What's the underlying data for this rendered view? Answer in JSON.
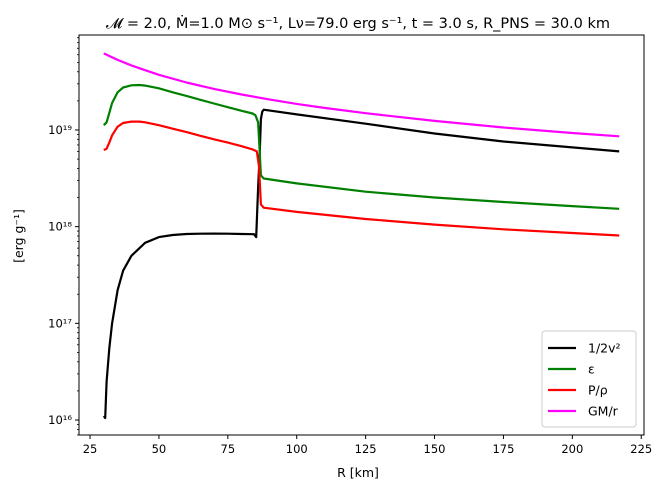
{
  "chart_data": {
    "type": "line",
    "title": "𝓜 = 2.0, Ṁ=1.0 M⊙ s⁻¹, Lν=79.0 erg s⁻¹, t = 3.0 s, R_PNS = 30.0 km",
    "xlabel": "R [km]",
    "ylabel": "[erg g⁻¹]",
    "xscale": "linear",
    "yscale": "log",
    "xlim": [
      21,
      226
    ],
    "ylim": [
      7000000000000000.0,
      9.6e+19
    ],
    "xticks": [
      25,
      50,
      75,
      100,
      125,
      150,
      175,
      200,
      225
    ],
    "yticks": [
      {
        "value": 1e+16,
        "label": "10¹⁶"
      },
      {
        "value": 1e+17,
        "label": "10¹⁷"
      },
      {
        "value": 1e+18,
        "label": "10¹⁸"
      },
      {
        "value": 1e+19,
        "label": "10¹⁹"
      }
    ],
    "grid": false,
    "legend_position": "lower-right",
    "series": [
      {
        "name": "1/2v²",
        "color": "#000000",
        "x": [
          30,
          30.5,
          31,
          32,
          33,
          35,
          37,
          40,
          45,
          50,
          55,
          60,
          65,
          70,
          75,
          80,
          84.5,
          85.3,
          86,
          86.6,
          87,
          87.5,
          88,
          100,
          125,
          150,
          175,
          200,
          217
        ],
        "y": [
          1.1e+16,
          1.05e+16,
          2.5e+16,
          5.5e+16,
          1e+17,
          2.2e+17,
          3.5e+17,
          5e+17,
          6.8e+17,
          7.8e+17,
          8.2e+17,
          8.4e+17,
          8.45e+17,
          8.47e+17,
          8.45e+17,
          8.4e+17,
          8.35e+17,
          7.8e+17,
          2.5e+18,
          6e+18,
          1.3e+19,
          1.55e+19,
          1.62e+19,
          1.45e+19,
          1.16e+19,
          9.2e+18,
          7.6e+18,
          6.6e+18,
          6e+18
        ]
      },
      {
        "name": "ε",
        "color": "#008000",
        "x": [
          30,
          31,
          32,
          33,
          35,
          37,
          40,
          43,
          45,
          50,
          55,
          60,
          65,
          70,
          75,
          80,
          84,
          85,
          86,
          86.5,
          87,
          88,
          100,
          125,
          150,
          175,
          200,
          217
        ],
        "y": [
          1.12e+19,
          1.2e+19,
          1.5e+19,
          1.9e+19,
          2.45e+19,
          2.75e+19,
          2.9e+19,
          2.92e+19,
          2.88e+19,
          2.7e+19,
          2.45e+19,
          2.25e+19,
          2.05e+19,
          1.88e+19,
          1.72e+19,
          1.58e+19,
          1.48e+19,
          1.42e+19,
          1.2e+19,
          6.5e+18,
          3.4e+18,
          3.15e+18,
          2.8e+18,
          2.3e+18,
          2e+18,
          1.8e+18,
          1.63e+18,
          1.53e+18
        ]
      },
      {
        "name": "P/ρ",
        "color": "#ff0000",
        "x": [
          30,
          31,
          32,
          33,
          35,
          37,
          40,
          43,
          45,
          50,
          55,
          60,
          65,
          70,
          75,
          80,
          84,
          85.5,
          86.3,
          87,
          88,
          100,
          125,
          150,
          175,
          200,
          217
        ],
        "y": [
          6.2e+18,
          6.4e+18,
          7.4e+18,
          8.8e+18,
          1.08e+19,
          1.18e+19,
          1.22e+19,
          1.22e+19,
          1.2e+19,
          1.12e+19,
          1.03e+19,
          9.5e+18,
          8.7e+18,
          8e+18,
          7.4e+18,
          6.8e+18,
          6.3e+18,
          6e+18,
          4.2e+18,
          1.7e+18,
          1.57e+18,
          1.42e+18,
          1.2e+18,
          1.05e+18,
          9.4e+17,
          8.6e+17,
          8.1e+17
        ]
      },
      {
        "name": "GM/r",
        "color": "#ff00ff",
        "x": [
          30,
          35,
          40,
          45,
          50,
          60,
          70,
          80,
          90,
          100,
          110,
          125,
          150,
          175,
          200,
          217
        ],
        "y": [
          6.2e+19,
          5.3e+19,
          4.65e+19,
          4.15e+19,
          3.72e+19,
          3.1e+19,
          2.66e+19,
          2.33e+19,
          2.07e+19,
          1.86e+19,
          1.69e+19,
          1.49e+19,
          1.24e+19,
          1.06e+19,
          9.3e+18,
          8.6e+18
        ]
      }
    ]
  }
}
